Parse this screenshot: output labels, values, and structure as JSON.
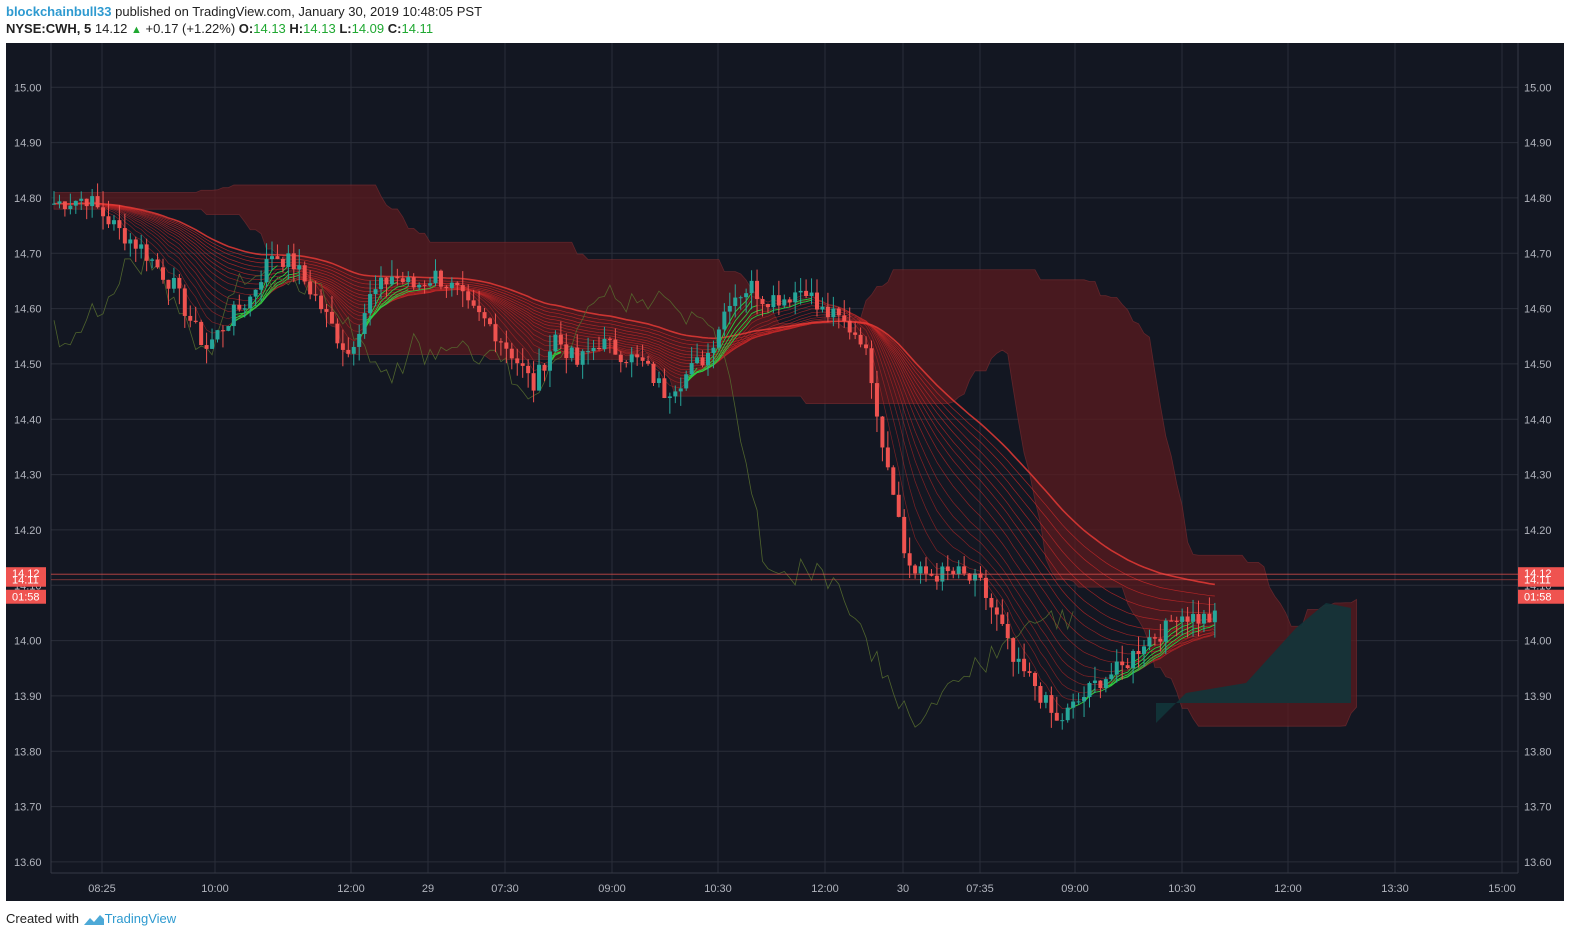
{
  "header": {
    "author": "blockchainbull33",
    "published": "published on TradingView.com, January 30, 2019 10:48:05 PST",
    "symbol": "NYSE:CWH, 5",
    "last": "14.12",
    "change": "+0.17 (+1.22%)",
    "o_label": "O:",
    "o": "14.13",
    "h_label": "H:",
    "h": "14.13",
    "l_label": "L:",
    "l": "14.09",
    "c_label": "C:",
    "c": "14.11"
  },
  "footer": {
    "created": "Created with",
    "brand": "TradingView"
  },
  "colors": {
    "background": "#131722",
    "up": "#26a69a",
    "down": "#ef5350",
    "ribbon_red": "#c62828",
    "ribbon_green": "#2ecc40",
    "cloud_red": "#5a1a1e",
    "cloud_teal": "#12353a",
    "price_badge": "#ef5350"
  },
  "chart_data": {
    "type": "candlestick",
    "ylim": [
      13.58,
      15.08
    ],
    "y_ticks": [
      "15.00",
      "14.90",
      "14.80",
      "14.70",
      "14.60",
      "14.50",
      "14.40",
      "14.30",
      "14.20",
      "14.10",
      "14.00",
      "13.90",
      "13.80",
      "13.70",
      "13.60"
    ],
    "y_tick_values": [
      15.0,
      14.9,
      14.8,
      14.7,
      14.6,
      14.5,
      14.4,
      14.3,
      14.2,
      14.1,
      14.0,
      13.9,
      13.8,
      13.7,
      13.6
    ],
    "x_ticks": [
      "08:25",
      "10:00",
      "12:00",
      "29",
      "07:30",
      "09:00",
      "10:30",
      "12:00",
      "30",
      "07:35",
      "09:00",
      "10:30",
      "12:00",
      "13:30",
      "15:00"
    ],
    "price_labels": {
      "a": "14.12",
      "b": "14.11",
      "countdown": "01:58"
    },
    "candle_count": 214,
    "path": [
      [
        0,
        14.79
      ],
      [
        6,
        14.8
      ],
      [
        12,
        14.74
      ],
      [
        16,
        14.71
      ],
      [
        22,
        14.64
      ],
      [
        26,
        14.56
      ],
      [
        28,
        14.53
      ],
      [
        32,
        14.58
      ],
      [
        36,
        14.62
      ],
      [
        40,
        14.7
      ],
      [
        44,
        14.68
      ],
      [
        48,
        14.62
      ],
      [
        52,
        14.55
      ],
      [
        54,
        14.52
      ],
      [
        58,
        14.62
      ],
      [
        62,
        14.66
      ],
      [
        66,
        14.64
      ],
      [
        70,
        14.66
      ],
      [
        74,
        14.63
      ],
      [
        76,
        14.6
      ],
      [
        80,
        14.57
      ],
      [
        84,
        14.52
      ],
      [
        88,
        14.46
      ],
      [
        92,
        14.55
      ],
      [
        96,
        14.5
      ],
      [
        100,
        14.54
      ],
      [
        104,
        14.52
      ],
      [
        108,
        14.5
      ],
      [
        112,
        14.45
      ],
      [
        116,
        14.48
      ],
      [
        120,
        14.52
      ],
      [
        124,
        14.62
      ],
      [
        128,
        14.64
      ],
      [
        130,
        14.62
      ],
      [
        134,
        14.62
      ],
      [
        138,
        14.64
      ],
      [
        140,
        14.6
      ],
      [
        144,
        14.58
      ],
      [
        148,
        14.55
      ],
      [
        150,
        14.48
      ],
      [
        152,
        14.36
      ],
      [
        154,
        14.28
      ],
      [
        156,
        14.16
      ],
      [
        158,
        14.12
      ],
      [
        160,
        14.12
      ],
      [
        166,
        14.12
      ],
      [
        170,
        14.1
      ],
      [
        174,
        14.02
      ],
      [
        176,
        13.96
      ],
      [
        180,
        13.92
      ],
      [
        184,
        13.85
      ],
      [
        188,
        13.89
      ],
      [
        192,
        13.93
      ],
      [
        196,
        13.95
      ],
      [
        200,
        14.0
      ],
      [
        204,
        14.02
      ],
      [
        206,
        14.05
      ],
      [
        210,
        14.04
      ],
      [
        214,
        14.04
      ]
    ],
    "session_breaks_x_labels": [
      "29",
      "30"
    ],
    "ribbon_colors": [
      "red",
      "green"
    ],
    "indicators": [
      "EMA ribbon",
      "Ichimoku cloud",
      "lagging span"
    ]
  }
}
